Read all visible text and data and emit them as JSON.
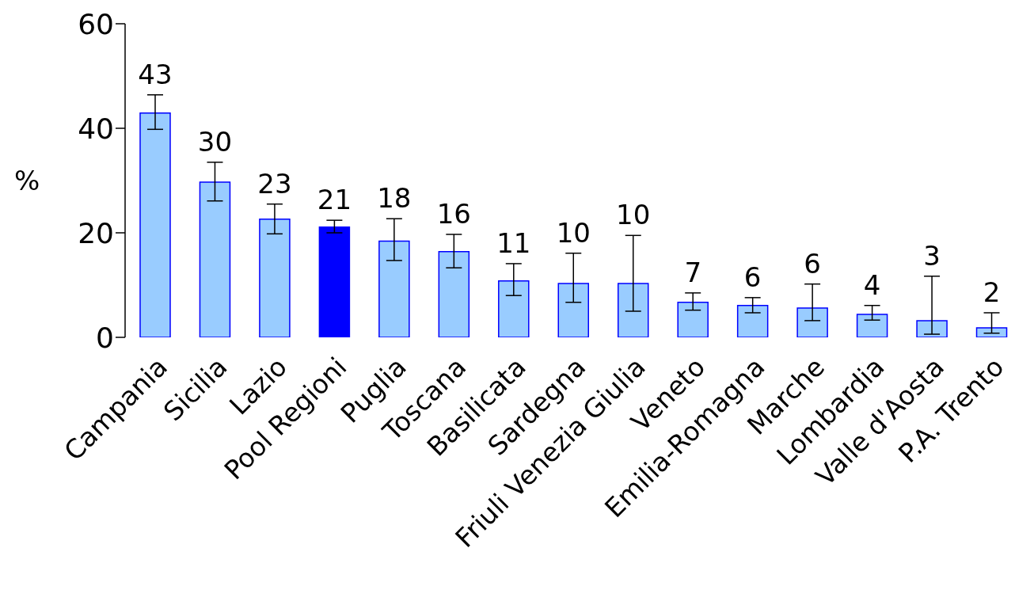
{
  "chart_data": {
    "type": "bar",
    "ylabel": "%",
    "categories": [
      "Campania",
      "Sicilia",
      "Lazio",
      "Pool Regioni",
      "Puglia",
      "Toscana",
      "Basilicata",
      "Sardegna",
      "Friuli Venezia Giulia",
      "Veneto",
      "Emilia-Romagna",
      "Marche",
      "Lombardia",
      "Valle d'Aosta",
      "P.A. Trento"
    ],
    "values": [
      42.9,
      29.7,
      22.6,
      21.1,
      18.4,
      16.4,
      10.8,
      10.3,
      10.3,
      6.7,
      6.1,
      5.6,
      4.4,
      3.2,
      1.8
    ],
    "errors": [
      [
        39.8,
        46.4
      ],
      [
        26.1,
        33.5
      ],
      [
        19.8,
        25.5
      ],
      [
        20.0,
        22.4
      ],
      [
        14.7,
        22.7
      ],
      [
        13.3,
        19.7
      ],
      [
        8.0,
        14.1
      ],
      [
        6.7,
        16.1
      ],
      [
        5.0,
        19.5
      ],
      [
        5.2,
        8.5
      ],
      [
        4.7,
        7.6
      ],
      [
        3.2,
        10.2
      ],
      [
        3.3,
        6.1
      ],
      [
        0.6,
        11.7
      ],
      [
        0.8,
        4.7
      ]
    ],
    "value_labels": [
      "43",
      "30",
      "23",
      "21",
      "18",
      "16",
      "11",
      "10",
      "10",
      "7",
      "6",
      "6",
      "4",
      "3",
      "2"
    ],
    "colors": [
      "#99ccff",
      "#99ccff",
      "#99ccff",
      "#0000ff",
      "#99ccff",
      "#99ccff",
      "#99ccff",
      "#99ccff",
      "#99ccff",
      "#99ccff",
      "#99ccff",
      "#99ccff",
      "#99ccff",
      "#99ccff",
      "#99ccff"
    ],
    "ylim": [
      0,
      60
    ],
    "yticks": [
      0,
      20,
      40,
      60
    ],
    "grid": false,
    "legend": false
  }
}
